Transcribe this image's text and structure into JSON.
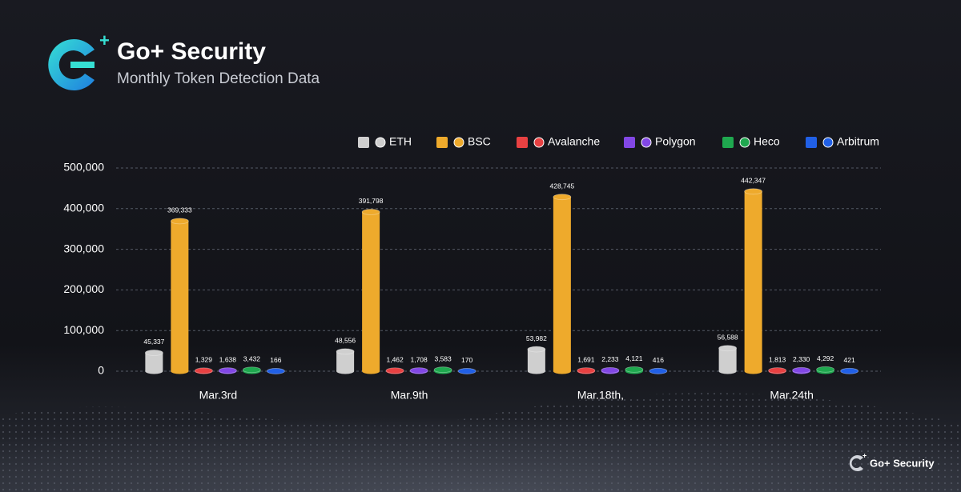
{
  "brand": "Go+ Security",
  "footer": {
    "brand": "Go+ Security"
  },
  "chart_data": {
    "type": "bar",
    "title": "Monthly Token Detection Data",
    "categories": [
      "Mar.3rd",
      "Mar.9th",
      "Mar.18th,",
      "Mar.24th"
    ],
    "series": [
      {
        "name": "ETH",
        "color": "#cfcfcf",
        "values": [
          45337,
          48556,
          53982,
          56588
        ],
        "value_labels": [
          "45,337",
          "48,556",
          "53,982",
          "56,588"
        ]
      },
      {
        "name": "BSC",
        "color": "#eeaa2c",
        "values": [
          369333,
          391798,
          428745,
          442347
        ],
        "value_labels": [
          "369,333",
          "391,798",
          "428,745",
          "442,347"
        ]
      },
      {
        "name": "Avalanche",
        "color": "#e84142",
        "values": [
          1329,
          1462,
          1691,
          1813
        ],
        "value_labels": [
          "1,329",
          "1,462",
          "1,691",
          "1,813"
        ]
      },
      {
        "name": "Polygon",
        "color": "#8247e5",
        "values": [
          1638,
          1708,
          2233,
          2330
        ],
        "value_labels": [
          "1,638",
          "1,708",
          "2,233",
          "2,330"
        ]
      },
      {
        "name": "Heco",
        "color": "#1fa84f",
        "values": [
          3432,
          3583,
          4121,
          4292
        ],
        "value_labels": [
          "3,432",
          "3,583",
          "4,121",
          "4,292"
        ]
      },
      {
        "name": "Arbitrum",
        "color": "#2160e6",
        "values": [
          166,
          170,
          416,
          421
        ],
        "value_labels": [
          "166",
          "170",
          "416",
          "421"
        ]
      }
    ],
    "ylim": [
      0,
      500000
    ],
    "yticks": [
      0,
      {
        "value": 100000,
        "label": "100,000"
      },
      {
        "value": 200000,
        "label": "200,000"
      },
      {
        "value": 300000,
        "label": "300,000"
      },
      {
        "value": 400000,
        "label": "400,000"
      },
      {
        "value": 500000,
        "label": "500,000"
      }
    ],
    "grid": true,
    "legend": "top-right"
  }
}
